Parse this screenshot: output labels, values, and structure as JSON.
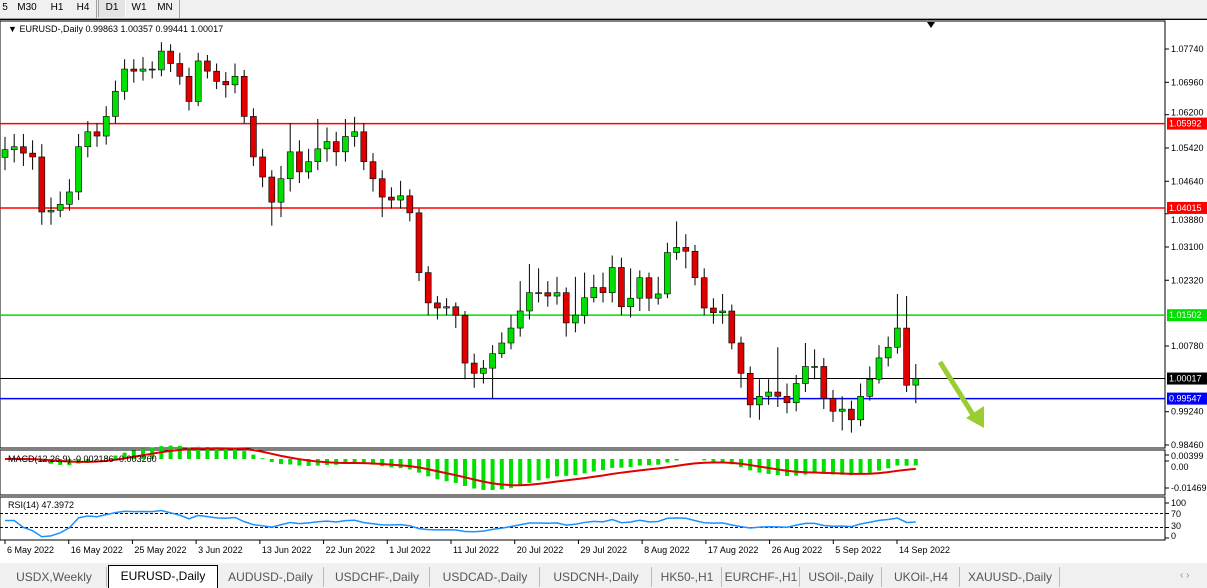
{
  "toolbar": {
    "timeframes": [
      "5",
      "M30",
      "H1",
      "H4",
      "D1",
      "W1",
      "MN"
    ],
    "active": "D1"
  },
  "chart": {
    "header": "EURUSD-,Daily  0.99863 1.00357 0.99441 1.00017",
    "symbol": "EURUSD-,Daily",
    "price_ticks": [
      "1.07740",
      "1.06960",
      "1.06200",
      "1.05420",
      "1.04640",
      "1.03880",
      "1.03100",
      "1.02320",
      "1.00780",
      "0.99240",
      "0.98460"
    ],
    "levels": [
      {
        "label": "1.05992",
        "price": 1.05992,
        "color": "#ff0000"
      },
      {
        "label": "1.04015",
        "price": 1.04015,
        "color": "#ff0000"
      },
      {
        "label": "1.01502",
        "price": 1.01502,
        "color": "#00e000"
      },
      {
        "label": "1.00017",
        "price": 1.00017,
        "color": "#000000"
      },
      {
        "label": "0.99547",
        "price": 0.99547,
        "color": "#0000ff"
      }
    ],
    "date_ticks": [
      "6 May 2022",
      "16 May 2022",
      "25 May 2022",
      "3 Jun 2022",
      "13 Jun 2022",
      "22 Jun 2022",
      "1 Jul 2022",
      "11 Jul 2022",
      "20 Jul 2022",
      "29 Jul 2022",
      "8 Aug 2022",
      "17 Aug 2022",
      "26 Aug 2022",
      "5 Sep 2022",
      "14 Sep 2022"
    ],
    "colors": {
      "bull": "#00e000",
      "bear": "#e00000",
      "arrow": "#9acd32"
    },
    "candles": {
      "open": [
        1.052,
        1.0538,
        1.0545,
        1.053,
        1.0521,
        1.0392,
        1.0396,
        1.041,
        1.0439,
        1.0545,
        1.058,
        1.057,
        1.0616,
        1.0675,
        1.0727,
        1.0722,
        1.0727,
        1.0725,
        1.0769,
        1.074,
        1.071,
        1.0651,
        1.0746,
        1.0722,
        1.0698,
        1.069,
        1.071,
        1.0616,
        1.0521,
        1.0474,
        1.0415,
        1.047,
        1.0533,
        1.0486,
        1.051,
        1.054,
        1.0557,
        1.0533,
        1.0569,
        1.058,
        1.051,
        1.047,
        1.0427,
        1.042,
        1.043,
        1.039,
        1.025,
        1.0179,
        1.0167,
        1.017,
        1.015,
        1.0038,
        1.0014,
        1.0026,
        1.006,
        1.0085,
        1.012,
        1.016,
        1.0203,
        1.0203,
        1.0195,
        1.0203,
        1.0132,
        1.015,
        1.0191,
        1.0215,
        1.0203,
        1.0262,
        1.017,
        1.019,
        1.0238,
        1.019,
        1.02,
        1.0297,
        1.0309,
        1.03,
        1.0238,
        1.0167,
        1.0156,
        1.016,
        1.0085,
        1.0014,
        0.994,
        0.996,
        0.997,
        0.996,
        0.9945,
        0.999,
        1.003,
        1.003,
        0.9955,
        0.9925,
        0.993,
        0.9905,
        0.996,
        1.0,
        1.005,
        1.0075,
        1.012,
        0.99863
      ],
      "high": [
        1.0568,
        1.0575,
        1.0575,
        1.056,
        1.0551,
        1.0426,
        1.044,
        1.0469,
        1.0575,
        1.0605,
        1.06,
        1.064,
        1.07,
        1.075,
        1.075,
        1.0755,
        1.0745,
        1.079,
        1.0785,
        1.0765,
        1.073,
        1.0765,
        1.076,
        1.074,
        1.072,
        1.074,
        1.0725,
        1.0635,
        1.054,
        1.049,
        1.05,
        1.06,
        1.056,
        1.054,
        1.061,
        1.059,
        1.058,
        1.061,
        1.0615,
        1.06,
        1.053,
        1.049,
        1.045,
        1.0465,
        1.0445,
        1.04,
        1.0265,
        1.0195,
        1.019,
        1.018,
        1.016,
        1.006,
        1.0045,
        1.008,
        1.011,
        1.015,
        1.023,
        1.027,
        1.026,
        1.023,
        1.024,
        1.0215,
        1.024,
        1.025,
        1.0245,
        1.025,
        1.029,
        1.0285,
        1.026,
        1.0255,
        1.025,
        1.024,
        1.032,
        1.037,
        1.034,
        1.0315,
        1.026,
        1.019,
        1.02,
        1.0175,
        1.01,
        1.003,
        1.0,
        1.0,
        1.0075,
        0.999,
        1.001,
        1.0085,
        1.007,
        1.005,
        0.9975,
        0.996,
        0.995,
        0.999,
        1.003,
        1.008,
        1.01,
        1.02,
        1.0195,
        1.00357
      ],
      "low": [
        1.049,
        1.0508,
        1.05,
        1.0491,
        1.0362,
        1.0362,
        1.038,
        1.0395,
        1.042,
        1.052,
        1.0545,
        1.055,
        1.06,
        1.0655,
        1.0695,
        1.07,
        1.0705,
        1.071,
        1.072,
        1.069,
        1.063,
        1.064,
        1.0705,
        1.068,
        1.066,
        1.067,
        1.06,
        1.05,
        1.045,
        1.036,
        1.038,
        1.044,
        1.046,
        1.047,
        1.049,
        1.051,
        1.05,
        1.051,
        1.0545,
        1.049,
        1.044,
        1.038,
        1.04,
        1.04,
        1.037,
        1.023,
        1.015,
        1.014,
        1.015,
        1.012,
        1.0,
        0.998,
        0.999,
        0.9955,
        1.005,
        1.007,
        1.01,
        1.014,
        1.018,
        1.017,
        1.0175,
        1.01,
        1.011,
        1.013,
        1.018,
        1.018,
        1.018,
        1.015,
        1.0145,
        1.016,
        1.016,
        1.0175,
        1.019,
        1.028,
        1.026,
        1.022,
        1.015,
        1.013,
        1.013,
        1.007,
        0.998,
        0.991,
        0.9905,
        0.994,
        0.9935,
        0.992,
        0.9925,
        0.997,
        1.0,
        0.993,
        0.99,
        0.988,
        0.9875,
        0.989,
        0.995,
        0.999,
        1.003,
        1.006,
        0.997,
        0.99441
      ],
      "close": [
        1.0538,
        1.0545,
        1.053,
        1.0521,
        1.0392,
        1.0396,
        1.041,
        1.0439,
        1.0545,
        1.058,
        1.057,
        1.0616,
        1.0675,
        1.0727,
        1.0722,
        1.0727,
        1.0725,
        1.0769,
        1.074,
        1.071,
        1.0651,
        1.0746,
        1.0722,
        1.0698,
        1.069,
        1.071,
        1.0616,
        1.0521,
        1.0474,
        1.0415,
        1.047,
        1.0533,
        1.0486,
        1.051,
        1.054,
        1.0557,
        1.0533,
        1.0569,
        1.058,
        1.051,
        1.047,
        1.0427,
        1.042,
        1.043,
        1.039,
        1.025,
        1.0179,
        1.0167,
        1.017,
        1.015,
        1.0038,
        1.0014,
        1.0026,
        1.006,
        1.0085,
        1.012,
        1.016,
        1.0203,
        1.0203,
        1.0195,
        1.0203,
        1.0132,
        1.015,
        1.0191,
        1.0215,
        1.0203,
        1.0262,
        1.017,
        1.019,
        1.0238,
        1.019,
        1.02,
        1.0297,
        1.0309,
        1.03,
        1.0238,
        1.0167,
        1.0156,
        1.016,
        1.0085,
        1.0014,
        0.994,
        0.996,
        0.997,
        0.996,
        0.9945,
        0.999,
        1.003,
        1.003,
        0.9955,
        0.9925,
        0.993,
        0.9905,
        0.996,
        1.0,
        1.005,
        1.0075,
        1.012,
        0.9986,
        1.00017
      ]
    }
  },
  "macd": {
    "label": "MACD(12,26,9) -0.002186 -0.003260",
    "ticks": [
      "0.00399",
      "0.00",
      "-0.01469"
    ]
  },
  "rsi": {
    "label": "RSI(14) 47.3972",
    "ticks": [
      "100",
      "70",
      "30",
      "0"
    ]
  },
  "tabs": [
    "USDX,Weekly",
    "EURUSD-,Daily",
    "AUDUSD-,Daily",
    "USDCHF-,Daily",
    "USDCAD-,Daily",
    "USDCNH-,Daily",
    "HK50-,H1",
    "EURCHF-,H1",
    "USOil-,Daily",
    "UKOil-,H4",
    "XAUUSD-,Daily"
  ],
  "active_tab": "EURUSD-,Daily"
}
